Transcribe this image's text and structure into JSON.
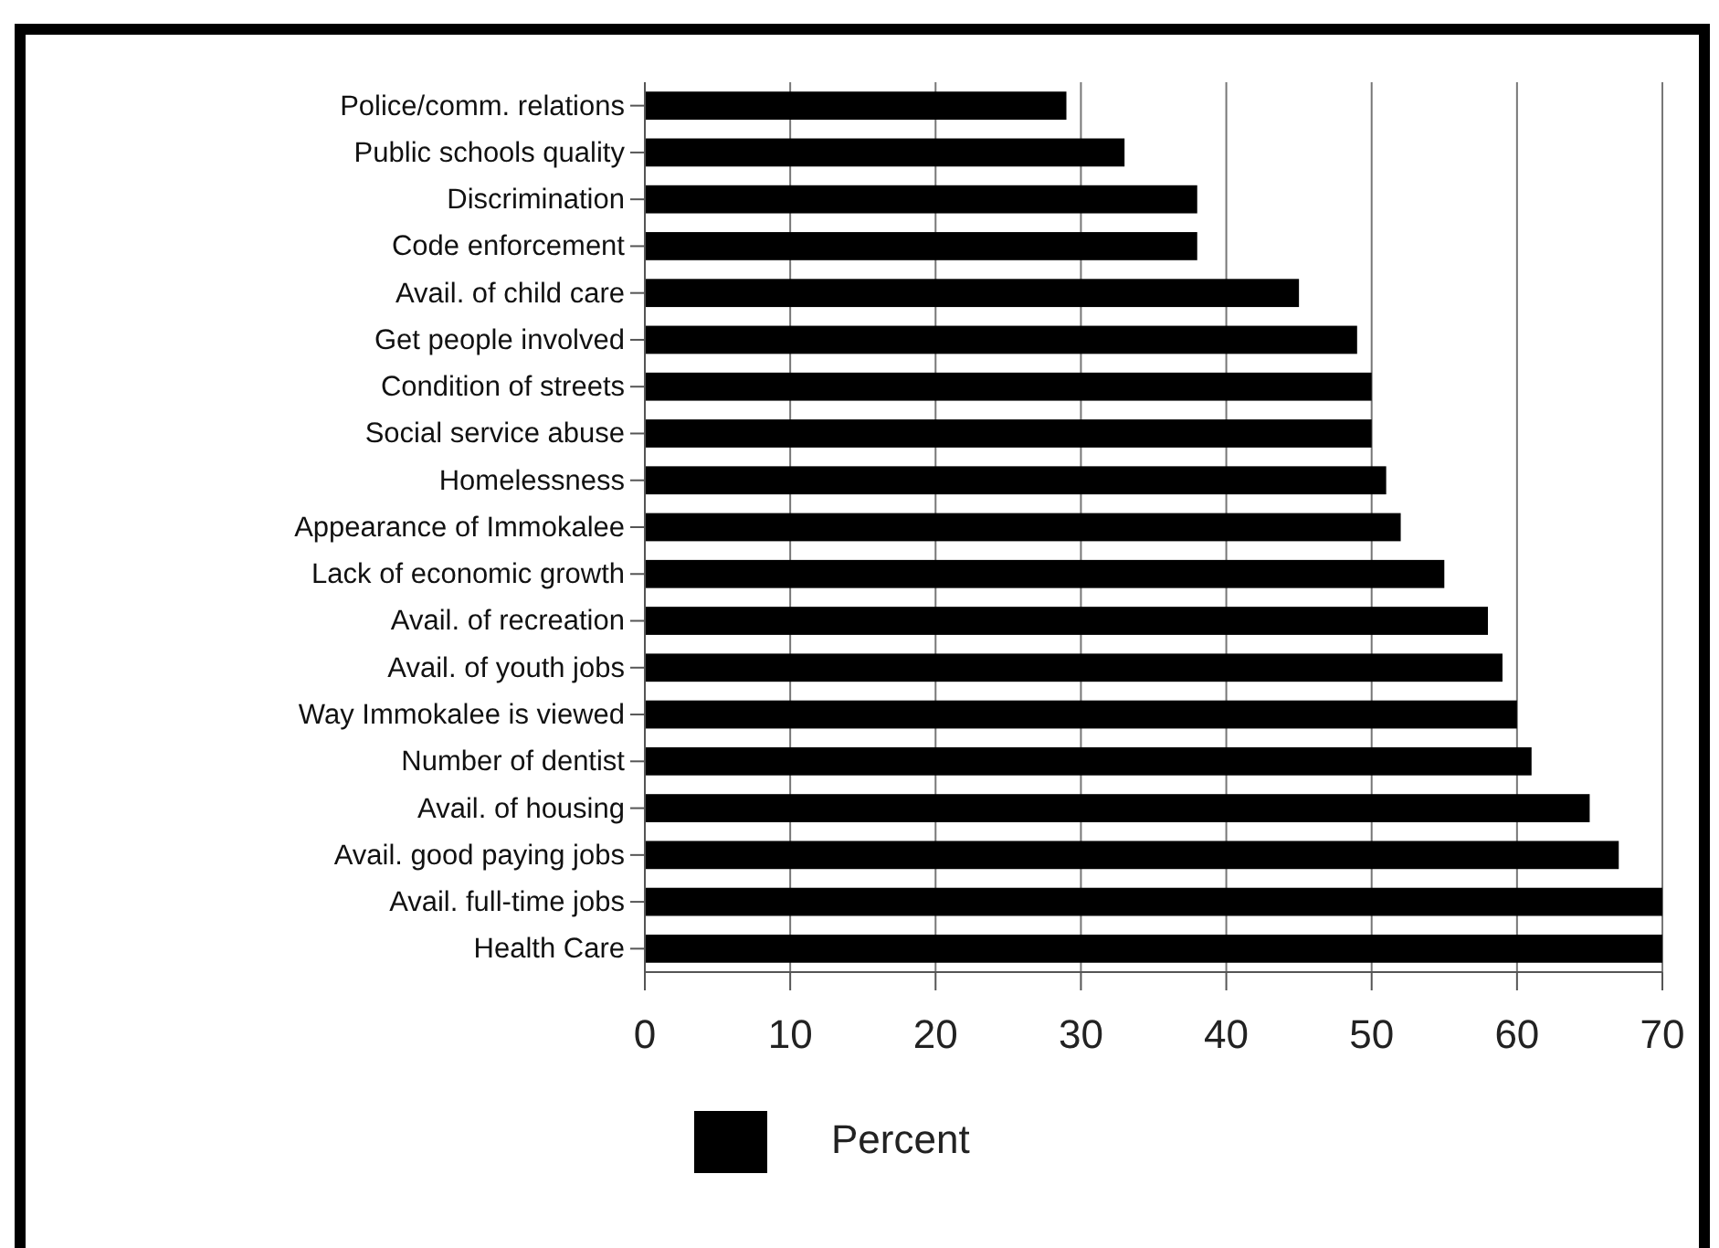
{
  "chart_data": {
    "type": "bar",
    "orientation": "horizontal",
    "categories": [
      "Police/comm. relations",
      "Public schools quality",
      "Discrimination",
      "Code enforcement",
      "Avail. of child care",
      "Get people involved",
      "Condition of streets",
      "Social service abuse",
      "Homelessness",
      "Appearance of Immokalee",
      "Lack of economic growth",
      "Avail. of recreation",
      "Avail. of youth jobs",
      "Way Immokalee is viewed",
      "Number of dentist",
      "Avail. of housing",
      "Avail. good paying jobs",
      "Avail. full-time jobs",
      "Health Care"
    ],
    "series": [
      {
        "name": "Percent",
        "color": "#000000",
        "values": [
          29,
          33,
          38,
          38,
          45,
          49,
          50,
          50,
          51,
          52,
          55,
          58,
          59,
          60,
          61,
          65,
          67,
          70,
          70
        ]
      }
    ],
    "xlim": [
      0,
      70
    ],
    "xticks": [
      0,
      10,
      20,
      30,
      40,
      50,
      60,
      70
    ],
    "grid": "x",
    "legend": "bottom"
  }
}
